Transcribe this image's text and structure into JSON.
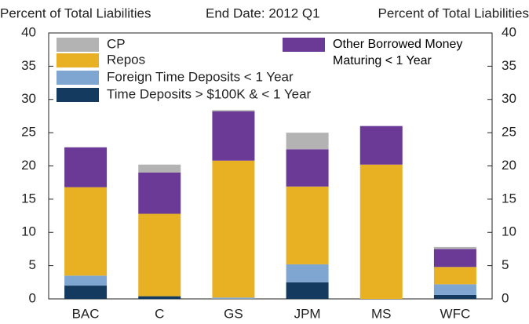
{
  "chart_data": {
    "type": "bar",
    "stacked": true,
    "y_label": "Percent of Total Liabilities",
    "title": "End Date: 2012 Q1",
    "y2_label": "Percent of Total Liabilities",
    "categories": [
      "BAC",
      "C",
      "GS",
      "JPM",
      "MS",
      "WFC"
    ],
    "series": [
      {
        "name": "Time Deposits > $100K & < 1 Year",
        "color": "#143a60",
        "values": [
          2.0,
          0.4,
          0,
          2.5,
          0,
          0.6
        ]
      },
      {
        "name": "Foreign Time Deposits < 1 Year",
        "color": "#7fa6d1",
        "values": [
          1.5,
          0,
          0.2,
          2.7,
          0,
          1.6
        ]
      },
      {
        "name": "Repos",
        "color": "#e8b123",
        "values": [
          13.3,
          12.4,
          20.6,
          11.7,
          20.2,
          2.6
        ]
      },
      {
        "name": "Other Borrowed Money Maturing < 1 Year",
        "color": "#6a3a96",
        "values": [
          6.0,
          6.2,
          7.4,
          5.6,
          5.8,
          2.7
        ]
      },
      {
        "name": "CP",
        "color": "#b3b3b3",
        "values": [
          0,
          1.2,
          0.2,
          2.5,
          0,
          0.3
        ]
      }
    ],
    "ylim": [
      0,
      40
    ],
    "yticks": [
      0,
      5,
      10,
      15,
      20,
      25,
      30,
      35,
      40
    ],
    "y2lim": [
      0,
      40
    ],
    "y2ticks": [
      0,
      5,
      10,
      15,
      20,
      25,
      30,
      35,
      40
    ]
  }
}
